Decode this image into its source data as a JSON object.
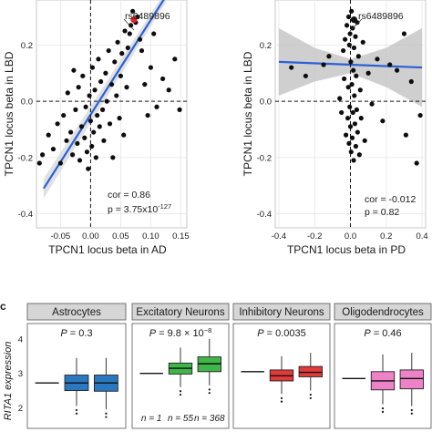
{
  "chart_data": [
    {
      "type": "scatter",
      "xlabel": "TPCN1 locus beta in AD",
      "ylabel": "TPCN1 locus beta in LBD",
      "xlim": [
        -0.09,
        0.16
      ],
      "ylim": [
        -0.45,
        0.36
      ],
      "x_ticks": [
        "-0.05",
        "0.00",
        "0.05",
        "0.10",
        "0.15"
      ],
      "x_tick_values": [
        -0.05,
        0.0,
        0.05,
        0.1,
        0.15
      ],
      "y_ticks": [
        "0.2",
        "0.0",
        "-0.2",
        "-0.4"
      ],
      "y_tick_values": [
        0.2,
        0.0,
        -0.2,
        -0.4
      ],
      "annotation_label": "rs6489896",
      "highlight": {
        "x": 0.072,
        "y": 0.29,
        "color": "#e0202a"
      },
      "stats": {
        "cor": "cor = 0.86",
        "p_prefix": "p = 3.75x10",
        "p_exponent": "-127"
      },
      "fit": {
        "x": [
          -0.078,
          0.145
        ],
        "y": [
          -0.31,
          0.44
        ],
        "color": "#2a60d8",
        "band_color": "#d9d9d9"
      },
      "grid": true,
      "points": [
        [
          -0.085,
          -0.22
        ],
        [
          -0.08,
          -0.19
        ],
        [
          -0.07,
          -0.12
        ],
        [
          -0.062,
          -0.17
        ],
        [
          -0.055,
          -0.08
        ],
        [
          -0.05,
          -0.22
        ],
        [
          -0.045,
          -0.05
        ],
        [
          -0.04,
          -0.14
        ],
        [
          -0.038,
          0.03
        ],
        [
          -0.033,
          -0.11
        ],
        [
          -0.03,
          -0.19
        ],
        [
          -0.028,
          0.11
        ],
        [
          -0.025,
          -0.03
        ],
        [
          -0.022,
          -0.15
        ],
        [
          -0.02,
          0.05
        ],
        [
          -0.018,
          -0.21
        ],
        [
          -0.015,
          -0.09
        ],
        [
          -0.013,
          0.09
        ],
        [
          -0.01,
          -0.13
        ],
        [
          -0.008,
          -0.02
        ],
        [
          -0.006,
          -0.18
        ],
        [
          -0.004,
          -0.24
        ],
        [
          -0.002,
          0.02
        ],
        [
          0.0,
          -0.07
        ],
        [
          0.002,
          -0.16
        ],
        [
          0.003,
          0.12
        ],
        [
          0.005,
          -0.11
        ],
        [
          0.007,
          0.04
        ],
        [
          0.009,
          -0.2
        ],
        [
          0.011,
          -0.05
        ],
        [
          0.013,
          0.15
        ],
        [
          0.015,
          -0.09
        ],
        [
          0.017,
          0.07
        ],
        [
          0.02,
          -0.03
        ],
        [
          0.022,
          -0.14
        ],
        [
          0.025,
          0.1
        ],
        [
          0.027,
          0.0
        ],
        [
          0.03,
          0.18
        ],
        [
          0.032,
          -0.08
        ],
        [
          0.035,
          0.06
        ],
        [
          0.037,
          -0.2
        ],
        [
          0.04,
          0.14
        ],
        [
          0.043,
          0.02
        ],
        [
          0.045,
          0.21
        ],
        [
          0.048,
          -0.06
        ],
        [
          0.05,
          0.09
        ],
        [
          0.052,
          0.17
        ],
        [
          0.055,
          -0.12
        ],
        [
          0.057,
          0.25
        ],
        [
          0.06,
          0.05
        ],
        [
          0.062,
          0.19
        ],
        [
          0.065,
          0.24
        ],
        [
          0.067,
          0.27
        ],
        [
          0.07,
          0.32
        ],
        [
          0.075,
          0.28
        ],
        [
          0.078,
          0.3
        ],
        [
          0.082,
          0.22
        ],
        [
          0.085,
          0.18
        ],
        [
          0.09,
          0.06
        ],
        [
          0.095,
          -0.05
        ],
        [
          0.1,
          0.12
        ],
        [
          0.105,
          0.24
        ],
        [
          0.11,
          -0.02
        ],
        [
          0.12,
          0.08
        ],
        [
          0.13,
          0.04
        ],
        [
          0.14,
          0.15
        ],
        [
          0.148,
          -0.03
        ]
      ]
    },
    {
      "type": "scatter",
      "xlabel": "TPCN1 locus beta in PD",
      "ylabel": "TPCN1 locus beta in LBD",
      "xlim": [
        -0.42,
        0.42
      ],
      "ylim": [
        -0.45,
        0.36
      ],
      "x_ticks": [
        "-0.4",
        "-0.2",
        "0.0",
        "0.2",
        "0.4"
      ],
      "x_tick_values": [
        -0.4,
        -0.2,
        0.0,
        0.2,
        0.4
      ],
      "y_ticks": [
        "0.2",
        "0.0",
        "-0.2",
        "-0.4"
      ],
      "y_tick_values": [
        0.2,
        0.0,
        -0.2,
        -0.4
      ],
      "annotation_label": "rs6489896",
      "highlight": {
        "x": 0.02,
        "y": 0.29,
        "color": "#111111"
      },
      "stats": {
        "cor": "cor = -0.012",
        "p": "p = 0.82"
      },
      "fit": {
        "x": [
          -0.4,
          0.4
        ],
        "y": [
          0.14,
          0.12
        ],
        "color": "#2a60d8",
        "band_color": "#bfbfbf"
      },
      "band": {
        "x": [
          -0.4,
          -0.2,
          0.0,
          0.2,
          0.4
        ],
        "upper": [
          0.26,
          0.19,
          0.15,
          0.19,
          0.26
        ],
        "lower": [
          0.02,
          0.07,
          0.1,
          0.05,
          -0.02
        ]
      },
      "grid": true,
      "points": [
        [
          -0.33,
          0.12
        ],
        [
          -0.25,
          0.09
        ],
        [
          -0.15,
          0.13
        ],
        [
          -0.12,
          0.16
        ],
        [
          -0.06,
          0.01
        ],
        [
          -0.05,
          -0.04
        ],
        [
          -0.04,
          0.18
        ],
        [
          -0.035,
          0.08
        ],
        [
          -0.03,
          0.22
        ],
        [
          -0.025,
          -0.12
        ],
        [
          -0.02,
          0.27
        ],
        [
          -0.015,
          -0.06
        ],
        [
          -0.012,
          0.05
        ],
        [
          -0.01,
          0.3
        ],
        [
          -0.008,
          -0.15
        ],
        [
          -0.006,
          0.2
        ],
        [
          -0.004,
          -0.02
        ],
        [
          -0.002,
          0.24
        ],
        [
          0.0,
          -0.09
        ],
        [
          0.002,
          0.14
        ],
        [
          0.004,
          -0.18
        ],
        [
          0.006,
          0.32
        ],
        [
          0.008,
          0.06
        ],
        [
          0.01,
          -0.13
        ],
        [
          0.012,
          0.26
        ],
        [
          0.014,
          -0.04
        ],
        [
          0.016,
          0.11
        ],
        [
          0.018,
          -0.21
        ],
        [
          0.02,
          0.19
        ],
        [
          0.022,
          0.02
        ],
        [
          0.025,
          -0.08
        ],
        [
          0.028,
          0.23
        ],
        [
          0.03,
          -0.16
        ],
        [
          0.032,
          0.09
        ],
        [
          0.035,
          -0.03
        ],
        [
          0.038,
          0.28
        ],
        [
          0.04,
          -0.11
        ],
        [
          0.045,
          0.16
        ],
        [
          0.05,
          -0.19
        ],
        [
          0.055,
          0.04
        ],
        [
          0.06,
          -0.06
        ],
        [
          0.07,
          0.21
        ],
        [
          0.08,
          -0.14
        ],
        [
          0.1,
          0.1
        ],
        [
          0.12,
          -0.01
        ],
        [
          0.15,
          0.15
        ],
        [
          0.18,
          -0.07
        ],
        [
          0.22,
          0.13
        ],
        [
          0.26,
          0.11
        ],
        [
          0.3,
          0.24
        ],
        [
          0.31,
          -0.12
        ],
        [
          0.34,
          0.07
        ],
        [
          0.37,
          -0.22
        ],
        [
          0.39,
          -0.05
        ]
      ]
    },
    {
      "type": "box",
      "panel_letter": "c",
      "ylabel": "RITA1 expression",
      "ylim": [
        1.4,
        4.45
      ],
      "y_ticks": [
        "4",
        "3",
        "2"
      ],
      "y_tick_values": [
        4,
        3,
        2
      ],
      "group_colors": [
        "#2a2a2a",
        "#1f77b4",
        "#2ca02c"
      ],
      "facets": [
        {
          "title": "Astrocytes",
          "p_label": "P",
          "p_value": " = 0.3",
          "fill": "#2a78c0",
          "boxes": [
            {
              "q1": 2.72,
              "q3": 2.72,
              "median": 2.72,
              "lo": 2.72,
              "hi": 2.72,
              "flat": true
            },
            {
              "q1": 2.5,
              "q3": 2.95,
              "median": 2.72,
              "lo": 2.05,
              "hi": 3.45
            },
            {
              "q1": 2.48,
              "q3": 2.95,
              "median": 2.72,
              "lo": 1.95,
              "hi": 3.45
            }
          ]
        },
        {
          "title": "Excitatory Neurons",
          "p_label": "P",
          "p_value": " = 9.8 × 10",
          "p_exp": "−8",
          "fill": "#3fb54a",
          "boxes": [
            {
              "q1": 3.0,
              "q3": 3.0,
              "median": 3.0,
              "lo": 3.0,
              "hi": 3.0,
              "flat": true
            },
            {
              "q1": 2.98,
              "q3": 3.3,
              "median": 3.15,
              "lo": 2.6,
              "hi": 3.75
            },
            {
              "q1": 3.05,
              "q3": 3.48,
              "median": 3.28,
              "lo": 2.65,
              "hi": 4.0
            }
          ],
          "n_labels": [
            "n = 1",
            "n = 55",
            "n = 368"
          ]
        },
        {
          "title": "Inhibitory Neurons",
          "p_label": "P",
          "p_value": " = 0.0035",
          "fill": "#e23a3a",
          "boxes": [
            {
              "q1": 3.05,
              "q3": 3.05,
              "median": 3.05,
              "lo": 3.05,
              "hi": 3.05,
              "flat": true
            },
            {
              "q1": 2.78,
              "q3": 3.1,
              "median": 2.93,
              "lo": 2.4,
              "hi": 3.5
            },
            {
              "q1": 2.9,
              "q3": 3.2,
              "median": 3.03,
              "lo": 2.5,
              "hi": 3.6
            }
          ]
        },
        {
          "title": "Oligodendrocytes",
          "p_label": "P",
          "p_value": " = 0.46",
          "fill": "#ee82c8",
          "boxes": [
            {
              "q1": 2.85,
              "q3": 2.85,
              "median": 2.85,
              "lo": 2.85,
              "hi": 2.85,
              "flat": true
            },
            {
              "q1": 2.52,
              "q3": 3.05,
              "median": 2.78,
              "lo": 2.1,
              "hi": 3.55
            },
            {
              "q1": 2.55,
              "q3": 3.1,
              "median": 2.85,
              "lo": 2.05,
              "hi": 3.6
            }
          ]
        }
      ]
    }
  ]
}
